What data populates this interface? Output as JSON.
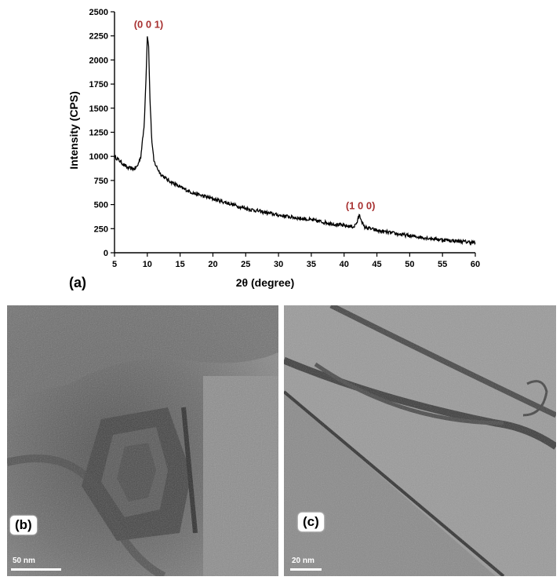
{
  "chart_data": {
    "type": "line",
    "xlabel": "2θ (degree)",
    "ylabel": "Intensity (CPS)",
    "xlim": [
      5,
      60
    ],
    "ylim": [
      0,
      2500
    ],
    "x_ticks": [
      5,
      10,
      15,
      20,
      25,
      30,
      35,
      40,
      45,
      50,
      55,
      60
    ],
    "y_ticks": [
      0,
      250,
      500,
      750,
      1000,
      1250,
      1500,
      1750,
      2000,
      2250,
      2500
    ],
    "series": [
      {
        "x": [
          5,
          6,
          7,
          8,
          8.5,
          9,
          9.5,
          9.8,
          10,
          10.2,
          10.4,
          10.7,
          11,
          11.5,
          12,
          13,
          14,
          15,
          17,
          20,
          25,
          30,
          35,
          40,
          41.5,
          42,
          42.3,
          42.6,
          43,
          44,
          45,
          50,
          55,
          60
        ],
        "y": [
          1000,
          940,
          880,
          870,
          900,
          1000,
          1300,
          1800,
          2250,
          2150,
          1600,
          1150,
          950,
          880,
          820,
          760,
          720,
          680,
          620,
          560,
          460,
          390,
          340,
          280,
          270,
          320,
          390,
          350,
          270,
          250,
          230,
          175,
          135,
          105
        ]
      }
    ],
    "annotations": [
      {
        "text": "(0 0 1)",
        "x": 10.2,
        "y": 2300
      },
      {
        "text": "(1 0 0)",
        "x": 42.5,
        "y": 420
      }
    ]
  },
  "panels": {
    "a": "(a)",
    "b": "(b)",
    "c": "(c)"
  },
  "scale_bars": {
    "b": "50 nm",
    "c": "20 nm"
  }
}
